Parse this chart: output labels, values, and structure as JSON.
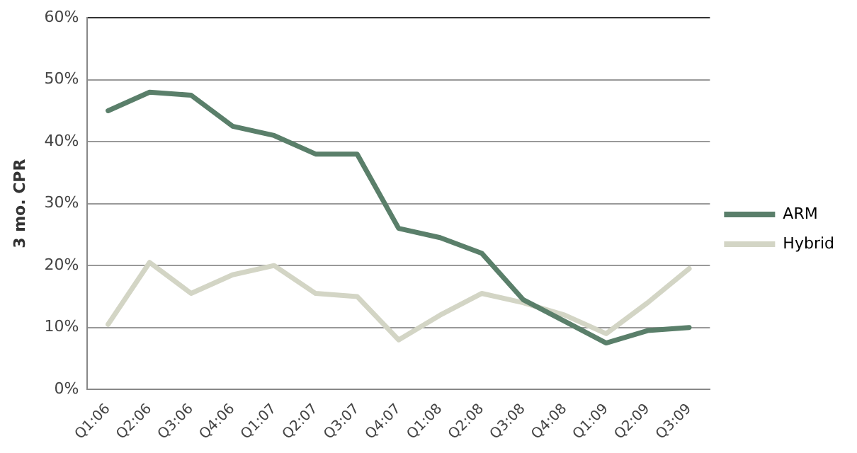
{
  "chart_data": {
    "type": "line",
    "ylabel": "3 mo. CPR",
    "categories": [
      "Q1:06",
      "Q2:06",
      "Q3:06",
      "Q4:06",
      "Q1:07",
      "Q2:07",
      "Q3:07",
      "Q4:07",
      "Q1:08",
      "Q2:08",
      "Q3:08",
      "Q4:08",
      "Q1:09",
      "Q2:09",
      "Q3:09"
    ],
    "series": [
      {
        "name": "ARM",
        "color": "#5a7f6a",
        "values": [
          45,
          48,
          47.5,
          42.5,
          41,
          38,
          38,
          26,
          24.5,
          22,
          14.5,
          11,
          7.5,
          9.5,
          10
        ]
      },
      {
        "name": "Hybrid",
        "color": "#d3d5c5",
        "values": [
          10.5,
          20.5,
          15.5,
          18.5,
          20,
          15.5,
          15,
          8,
          12,
          15.5,
          14,
          12,
          9,
          14,
          19.5
        ]
      }
    ],
    "ylim": [
      0,
      60
    ],
    "yticks": [
      {
        "value": 0,
        "label": "0%"
      },
      {
        "value": 10,
        "label": "10%"
      },
      {
        "value": 20,
        "label": "20%"
      },
      {
        "value": 30,
        "label": "30%"
      },
      {
        "value": 40,
        "label": "40%"
      },
      {
        "value": 50,
        "label": "50%"
      },
      {
        "value": 60,
        "label": "60%"
      }
    ],
    "grid": "y",
    "legend": "right",
    "marker": "none",
    "line_style": "solid"
  }
}
